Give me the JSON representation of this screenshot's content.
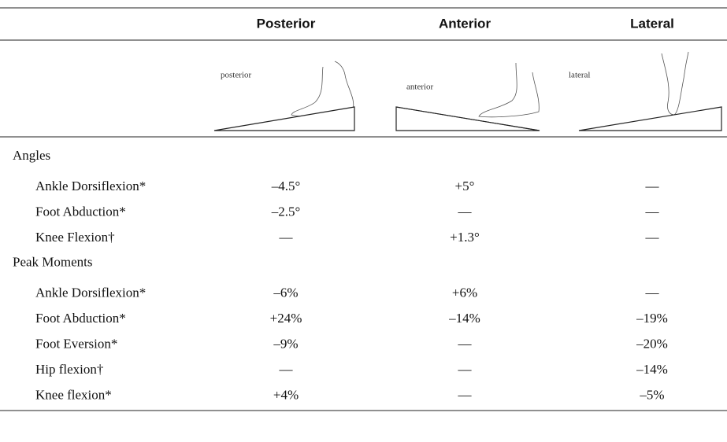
{
  "table": {
    "columns": [
      "Posterior",
      "Anterior",
      "Lateral"
    ],
    "image_labels": [
      "posterior",
      "anterior",
      "lateral"
    ],
    "sections": [
      {
        "title": "Angles",
        "rows": [
          [
            "Ankle Dorsiflexion*",
            "–4.5°",
            "+5°",
            "—"
          ],
          [
            "Foot Abduction*",
            "–2.5°",
            "—",
            "—"
          ],
          [
            "Knee Flexion†",
            "—",
            "+1.3°",
            "—"
          ]
        ]
      },
      {
        "title": "Peak Moments",
        "rows": [
          [
            "Ankle Dorsiflexion*",
            "–6%",
            "+6%",
            "—"
          ],
          [
            "Foot Abduction*",
            "+24%",
            "–14%",
            "–19%"
          ],
          [
            "Foot Eversion*",
            "–9%",
            "—",
            "–20%"
          ],
          [
            "Hip flexion†",
            "—",
            "—",
            "–14%"
          ],
          [
            "Knee flexion*",
            "+4%",
            "—",
            "–5%"
          ]
        ]
      }
    ]
  }
}
